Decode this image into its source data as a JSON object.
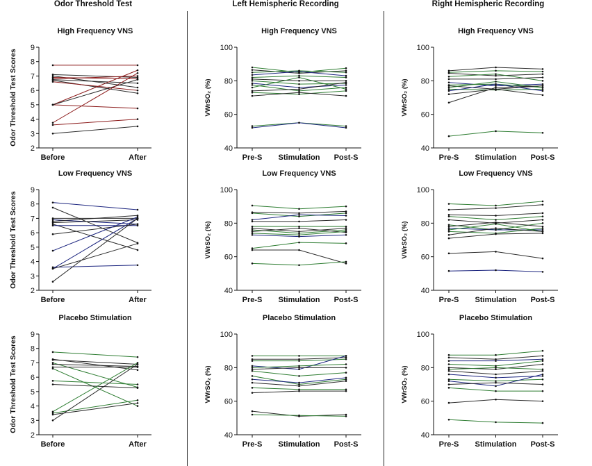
{
  "columns": [
    {
      "key": "odor",
      "title": "Odor Threshold Test"
    },
    {
      "key": "left",
      "title": "Left Hemispheric Recording"
    },
    {
      "key": "right",
      "title": "Right Hemispheric Recording"
    }
  ],
  "colors": {
    "red": "#8b1a1a",
    "green": "#2e7d32",
    "blue": "#1a237e",
    "dark": "#2b2b2b",
    "axis": "#111111"
  },
  "chart_data": [
    {
      "id": "p1",
      "type": "line",
      "title": "High Frequency VNS",
      "ylabel": "Odor Threshold Test Scores",
      "categories": [
        "Before",
        "After"
      ],
      "ylim": [
        2,
        9
      ],
      "yticks": [
        2,
        3,
        4,
        5,
        6,
        7,
        8,
        9
      ],
      "series": [
        {
          "values": [
            7.75,
            7.75
          ],
          "color": "red"
        },
        {
          "values": [
            7.1,
            6.9
          ],
          "color": "dark"
        },
        {
          "values": [
            7.0,
            6.2
          ],
          "color": "dark"
        },
        {
          "values": [
            6.9,
            6.8
          ],
          "color": "red"
        },
        {
          "values": [
            6.8,
            7.0
          ],
          "color": "red"
        },
        {
          "values": [
            6.75,
            6.5
          ],
          "color": "dark"
        },
        {
          "values": [
            6.7,
            5.8
          ],
          "color": "dark"
        },
        {
          "values": [
            6.6,
            6.0
          ],
          "color": "red"
        },
        {
          "values": [
            5.0,
            7.4
          ],
          "color": "red"
        },
        {
          "values": [
            5.0,
            4.75
          ],
          "color": "red"
        },
        {
          "values": [
            5.0,
            6.75
          ],
          "color": "dark"
        },
        {
          "values": [
            3.75,
            7.2
          ],
          "color": "red"
        },
        {
          "values": [
            3.6,
            4.0
          ],
          "color": "red"
        },
        {
          "values": [
            3.0,
            3.5
          ],
          "color": "dark"
        }
      ]
    },
    {
      "id": "p2",
      "type": "line",
      "title": "High Frequency VNS",
      "ylabel": "VWrSO₂ (%)",
      "categories": [
        "Pre-S",
        "Stimulation",
        "Post-S"
      ],
      "ylim": [
        40,
        100
      ],
      "yticks": [
        40,
        60,
        80,
        100
      ],
      "series": [
        {
          "values": [
            88,
            85,
            87.5
          ],
          "color": "green"
        },
        {
          "values": [
            86.5,
            84.5,
            86
          ],
          "color": "dark"
        },
        {
          "values": [
            85,
            86,
            85
          ],
          "color": "green"
        },
        {
          "values": [
            83.5,
            85.5,
            83
          ],
          "color": "blue"
        },
        {
          "values": [
            82,
            83,
            82
          ],
          "color": "green"
        },
        {
          "values": [
            81,
            80,
            80
          ],
          "color": "dark"
        },
        {
          "values": [
            80,
            78,
            78.5
          ],
          "color": "green"
        },
        {
          "values": [
            78.5,
            76,
            77.5
          ],
          "color": "blue"
        },
        {
          "values": [
            77.5,
            74,
            76
          ],
          "color": "green"
        },
        {
          "values": [
            76,
            82,
            75
          ],
          "color": "green"
        },
        {
          "values": [
            74,
            75,
            79
          ],
          "color": "dark"
        },
        {
          "values": [
            73,
            72,
            74
          ],
          "color": "green"
        },
        {
          "values": [
            71,
            73,
            71
          ],
          "color": "dark"
        },
        {
          "values": [
            53,
            55,
            53
          ],
          "color": "green"
        },
        {
          "values": [
            52,
            55,
            52
          ],
          "color": "blue"
        }
      ]
    },
    {
      "id": "p3",
      "type": "line",
      "title": "High Frequency VNS",
      "ylabel": "VWrSO₂ (%)",
      "categories": [
        "Pre-S",
        "Stimulation",
        "Post-S"
      ],
      "ylim": [
        40,
        100
      ],
      "yticks": [
        40,
        60,
        80,
        100
      ],
      "series": [
        {
          "values": [
            86,
            88,
            87
          ],
          "color": "dark"
        },
        {
          "values": [
            85,
            86,
            85.5
          ],
          "color": "green"
        },
        {
          "values": [
            84.5,
            83,
            84
          ],
          "color": "dark"
        },
        {
          "values": [
            82.5,
            84,
            80
          ],
          "color": "green"
        },
        {
          "values": [
            81,
            81,
            82
          ],
          "color": "dark"
        },
        {
          "values": [
            79,
            77,
            78
          ],
          "color": "blue"
        },
        {
          "values": [
            77.5,
            78,
            76
          ],
          "color": "green"
        },
        {
          "values": [
            77,
            75,
            77
          ],
          "color": "dark"
        },
        {
          "values": [
            76,
            79.5,
            76
          ],
          "color": "green"
        },
        {
          "values": [
            75,
            74.5,
            75
          ],
          "color": "green"
        },
        {
          "values": [
            74,
            78,
            74
          ],
          "color": "blue"
        },
        {
          "values": [
            72,
            75,
            71.5
          ],
          "color": "dark"
        },
        {
          "values": [
            67,
            76,
            77
          ],
          "color": "dark"
        },
        {
          "values": [
            47,
            50,
            49
          ],
          "color": "green"
        }
      ]
    },
    {
      "id": "p4",
      "type": "line",
      "title": "Low  Frequency VNS",
      "ylabel": "Odor Threshold Test Scores",
      "categories": [
        "Before",
        "After"
      ],
      "ylim": [
        2,
        9
      ],
      "yticks": [
        2,
        3,
        4,
        5,
        6,
        7,
        8,
        9
      ],
      "series": [
        {
          "values": [
            8.1,
            7.6
          ],
          "color": "blue"
        },
        {
          "values": [
            7.75,
            5.3
          ],
          "color": "dark"
        },
        {
          "values": [
            7.0,
            7.0
          ],
          "color": "dark"
        },
        {
          "values": [
            6.9,
            6.6
          ],
          "color": "blue"
        },
        {
          "values": [
            6.8,
            7.2
          ],
          "color": "dark"
        },
        {
          "values": [
            6.7,
            6.9
          ],
          "color": "dark"
        },
        {
          "values": [
            6.6,
            4.8
          ],
          "color": "dark"
        },
        {
          "values": [
            6.5,
            6.5
          ],
          "color": "blue"
        },
        {
          "values": [
            5.9,
            6.6
          ],
          "color": "dark"
        },
        {
          "values": [
            4.75,
            7.1
          ],
          "color": "blue"
        },
        {
          "values": [
            3.6,
            3.75
          ],
          "color": "blue"
        },
        {
          "values": [
            3.5,
            7.0
          ],
          "color": "blue"
        },
        {
          "values": [
            3.5,
            5.25
          ],
          "color": "dark"
        },
        {
          "values": [
            2.6,
            7.0
          ],
          "color": "dark"
        }
      ]
    },
    {
      "id": "p5",
      "type": "line",
      "title": "Low  Frequency VNS",
      "ylabel": "VWrSO₂ (%)",
      "categories": [
        "Pre-S",
        "Stimulation",
        "Post-S"
      ],
      "ylim": [
        40,
        100
      ],
      "yticks": [
        40,
        60,
        80,
        100
      ],
      "series": [
        {
          "values": [
            90.5,
            88.5,
            90
          ],
          "color": "green"
        },
        {
          "values": [
            86.5,
            86,
            87
          ],
          "color": "dark"
        },
        {
          "values": [
            86,
            84,
            86
          ],
          "color": "green"
        },
        {
          "values": [
            82,
            85,
            84.5
          ],
          "color": "blue"
        },
        {
          "values": [
            81,
            81,
            82
          ],
          "color": "dark"
        },
        {
          "values": [
            78,
            78,
            78
          ],
          "color": "green"
        },
        {
          "values": [
            77,
            75,
            77
          ],
          "color": "dark"
        },
        {
          "values": [
            76,
            74,
            76
          ],
          "color": "green"
        },
        {
          "values": [
            75,
            77,
            74.5
          ],
          "color": "dark"
        },
        {
          "values": [
            74,
            73,
            75
          ],
          "color": "green"
        },
        {
          "values": [
            73,
            72,
            73
          ],
          "color": "blue"
        },
        {
          "values": [
            65,
            68.5,
            68
          ],
          "color": "green"
        },
        {
          "values": [
            64,
            64,
            56
          ],
          "color": "dark"
        },
        {
          "values": [
            56,
            55,
            57
          ],
          "color": "green"
        }
      ]
    },
    {
      "id": "p6",
      "type": "line",
      "title": "Low  Frequency VNS",
      "ylabel": "VWrSO₂ (%)",
      "categories": [
        "Pre-S",
        "Stimulation",
        "Post-S"
      ],
      "ylim": [
        40,
        100
      ],
      "yticks": [
        40,
        60,
        80,
        100
      ],
      "series": [
        {
          "values": [
            91.5,
            90.5,
            93
          ],
          "color": "green"
        },
        {
          "values": [
            88,
            89,
            91
          ],
          "color": "dark"
        },
        {
          "values": [
            85,
            84.5,
            86
          ],
          "color": "dark"
        },
        {
          "values": [
            84,
            82,
            84
          ],
          "color": "green"
        },
        {
          "values": [
            82,
            80,
            82
          ],
          "color": "dark"
        },
        {
          "values": [
            79,
            76,
            80
          ],
          "color": "green"
        },
        {
          "values": [
            78,
            80.5,
            78
          ],
          "color": "dark"
        },
        {
          "values": [
            77,
            76,
            76
          ],
          "color": "blue"
        },
        {
          "values": [
            76,
            79.5,
            75
          ],
          "color": "green"
        },
        {
          "values": [
            75,
            74,
            77
          ],
          "color": "green"
        },
        {
          "values": [
            73,
            77,
            75
          ],
          "color": "dark"
        },
        {
          "values": [
            71,
            73.5,
            74
          ],
          "color": "dark"
        },
        {
          "values": [
            62,
            63,
            59
          ],
          "color": "dark"
        },
        {
          "values": [
            51.5,
            52,
            51
          ],
          "color": "blue"
        }
      ]
    },
    {
      "id": "p7",
      "type": "line",
      "title": "Placebo Stimulation",
      "ylabel": "Odor Threshold Test Scores",
      "categories": [
        "Before",
        "After"
      ],
      "ylim": [
        2,
        9
      ],
      "yticks": [
        2,
        3,
        4,
        5,
        6,
        7,
        8,
        9
      ],
      "series": [
        {
          "values": [
            7.75,
            7.4
          ],
          "color": "green"
        },
        {
          "values": [
            7.25,
            6.5
          ],
          "color": "dark"
        },
        {
          "values": [
            7.2,
            6.9
          ],
          "color": "dark"
        },
        {
          "values": [
            7.0,
            5.3
          ],
          "color": "green"
        },
        {
          "values": [
            6.9,
            6.75
          ],
          "color": "dark"
        },
        {
          "values": [
            6.7,
            6.7
          ],
          "color": "dark"
        },
        {
          "values": [
            6.6,
            4.0
          ],
          "color": "green"
        },
        {
          "values": [
            5.75,
            5.5
          ],
          "color": "green"
        },
        {
          "values": [
            5.5,
            5.25
          ],
          "color": "dark"
        },
        {
          "values": [
            3.6,
            7.0
          ],
          "color": "green"
        },
        {
          "values": [
            3.5,
            4.4
          ],
          "color": "green"
        },
        {
          "values": [
            3.4,
            4.2
          ],
          "color": "dark"
        },
        {
          "values": [
            3.0,
            6.9
          ],
          "color": "dark"
        }
      ]
    },
    {
      "id": "p8",
      "type": "line",
      "title": "Placebo Stimulation",
      "ylabel": "VWrSO₂ (%)",
      "categories": [
        "Pre-S",
        "Stimulation",
        "Post-S"
      ],
      "ylim": [
        40,
        100
      ],
      "yticks": [
        40,
        60,
        80,
        100
      ],
      "series": [
        {
          "values": [
            87,
            87,
            87
          ],
          "color": "green"
        },
        {
          "values": [
            85,
            85,
            86
          ],
          "color": "dark"
        },
        {
          "values": [
            84,
            84,
            85
          ],
          "color": "green"
        },
        {
          "values": [
            81,
            79,
            87
          ],
          "color": "blue"
        },
        {
          "values": [
            80,
            81,
            82
          ],
          "color": "green"
        },
        {
          "values": [
            79,
            80,
            80
          ],
          "color": "dark"
        },
        {
          "values": [
            78,
            75,
            77
          ],
          "color": "green"
        },
        {
          "values": [
            75,
            70,
            73
          ],
          "color": "green"
        },
        {
          "values": [
            73,
            71,
            74
          ],
          "color": "blue"
        },
        {
          "values": [
            71,
            69,
            72
          ],
          "color": "dark"
        },
        {
          "values": [
            68,
            67,
            67
          ],
          "color": "green"
        },
        {
          "values": [
            65,
            66,
            66
          ],
          "color": "dark"
        },
        {
          "values": [
            54,
            51,
            52
          ],
          "color": "dark"
        },
        {
          "values": [
            52,
            51.5,
            51
          ],
          "color": "green"
        }
      ]
    },
    {
      "id": "p9",
      "type": "line",
      "title": "Placebo Stimulation",
      "ylabel": "VWrSO₂ (%)",
      "categories": [
        "Pre-S",
        "Stimulation",
        "Post-S"
      ],
      "ylim": [
        40,
        100
      ],
      "yticks": [
        40,
        60,
        80,
        100
      ],
      "series": [
        {
          "values": [
            87.5,
            87.5,
            90
          ],
          "color": "green"
        },
        {
          "values": [
            86,
            85,
            87
          ],
          "color": "dark"
        },
        {
          "values": [
            84,
            84,
            85
          ],
          "color": "blue"
        },
        {
          "values": [
            82,
            81,
            84
          ],
          "color": "green"
        },
        {
          "values": [
            80,
            79,
            82
          ],
          "color": "dark"
        },
        {
          "values": [
            79,
            80,
            79
          ],
          "color": "green"
        },
        {
          "values": [
            78,
            76,
            78
          ],
          "color": "dark"
        },
        {
          "values": [
            76,
            74,
            75
          ],
          "color": "blue"
        },
        {
          "values": [
            73,
            72,
            73
          ],
          "color": "green"
        },
        {
          "values": [
            72,
            69,
            76
          ],
          "color": "blue"
        },
        {
          "values": [
            70,
            71,
            70
          ],
          "color": "dark"
        },
        {
          "values": [
            68,
            66,
            66
          ],
          "color": "green"
        },
        {
          "values": [
            59,
            61,
            60
          ],
          "color": "dark"
        },
        {
          "values": [
            49,
            47.5,
            47
          ],
          "color": "green"
        }
      ]
    }
  ]
}
